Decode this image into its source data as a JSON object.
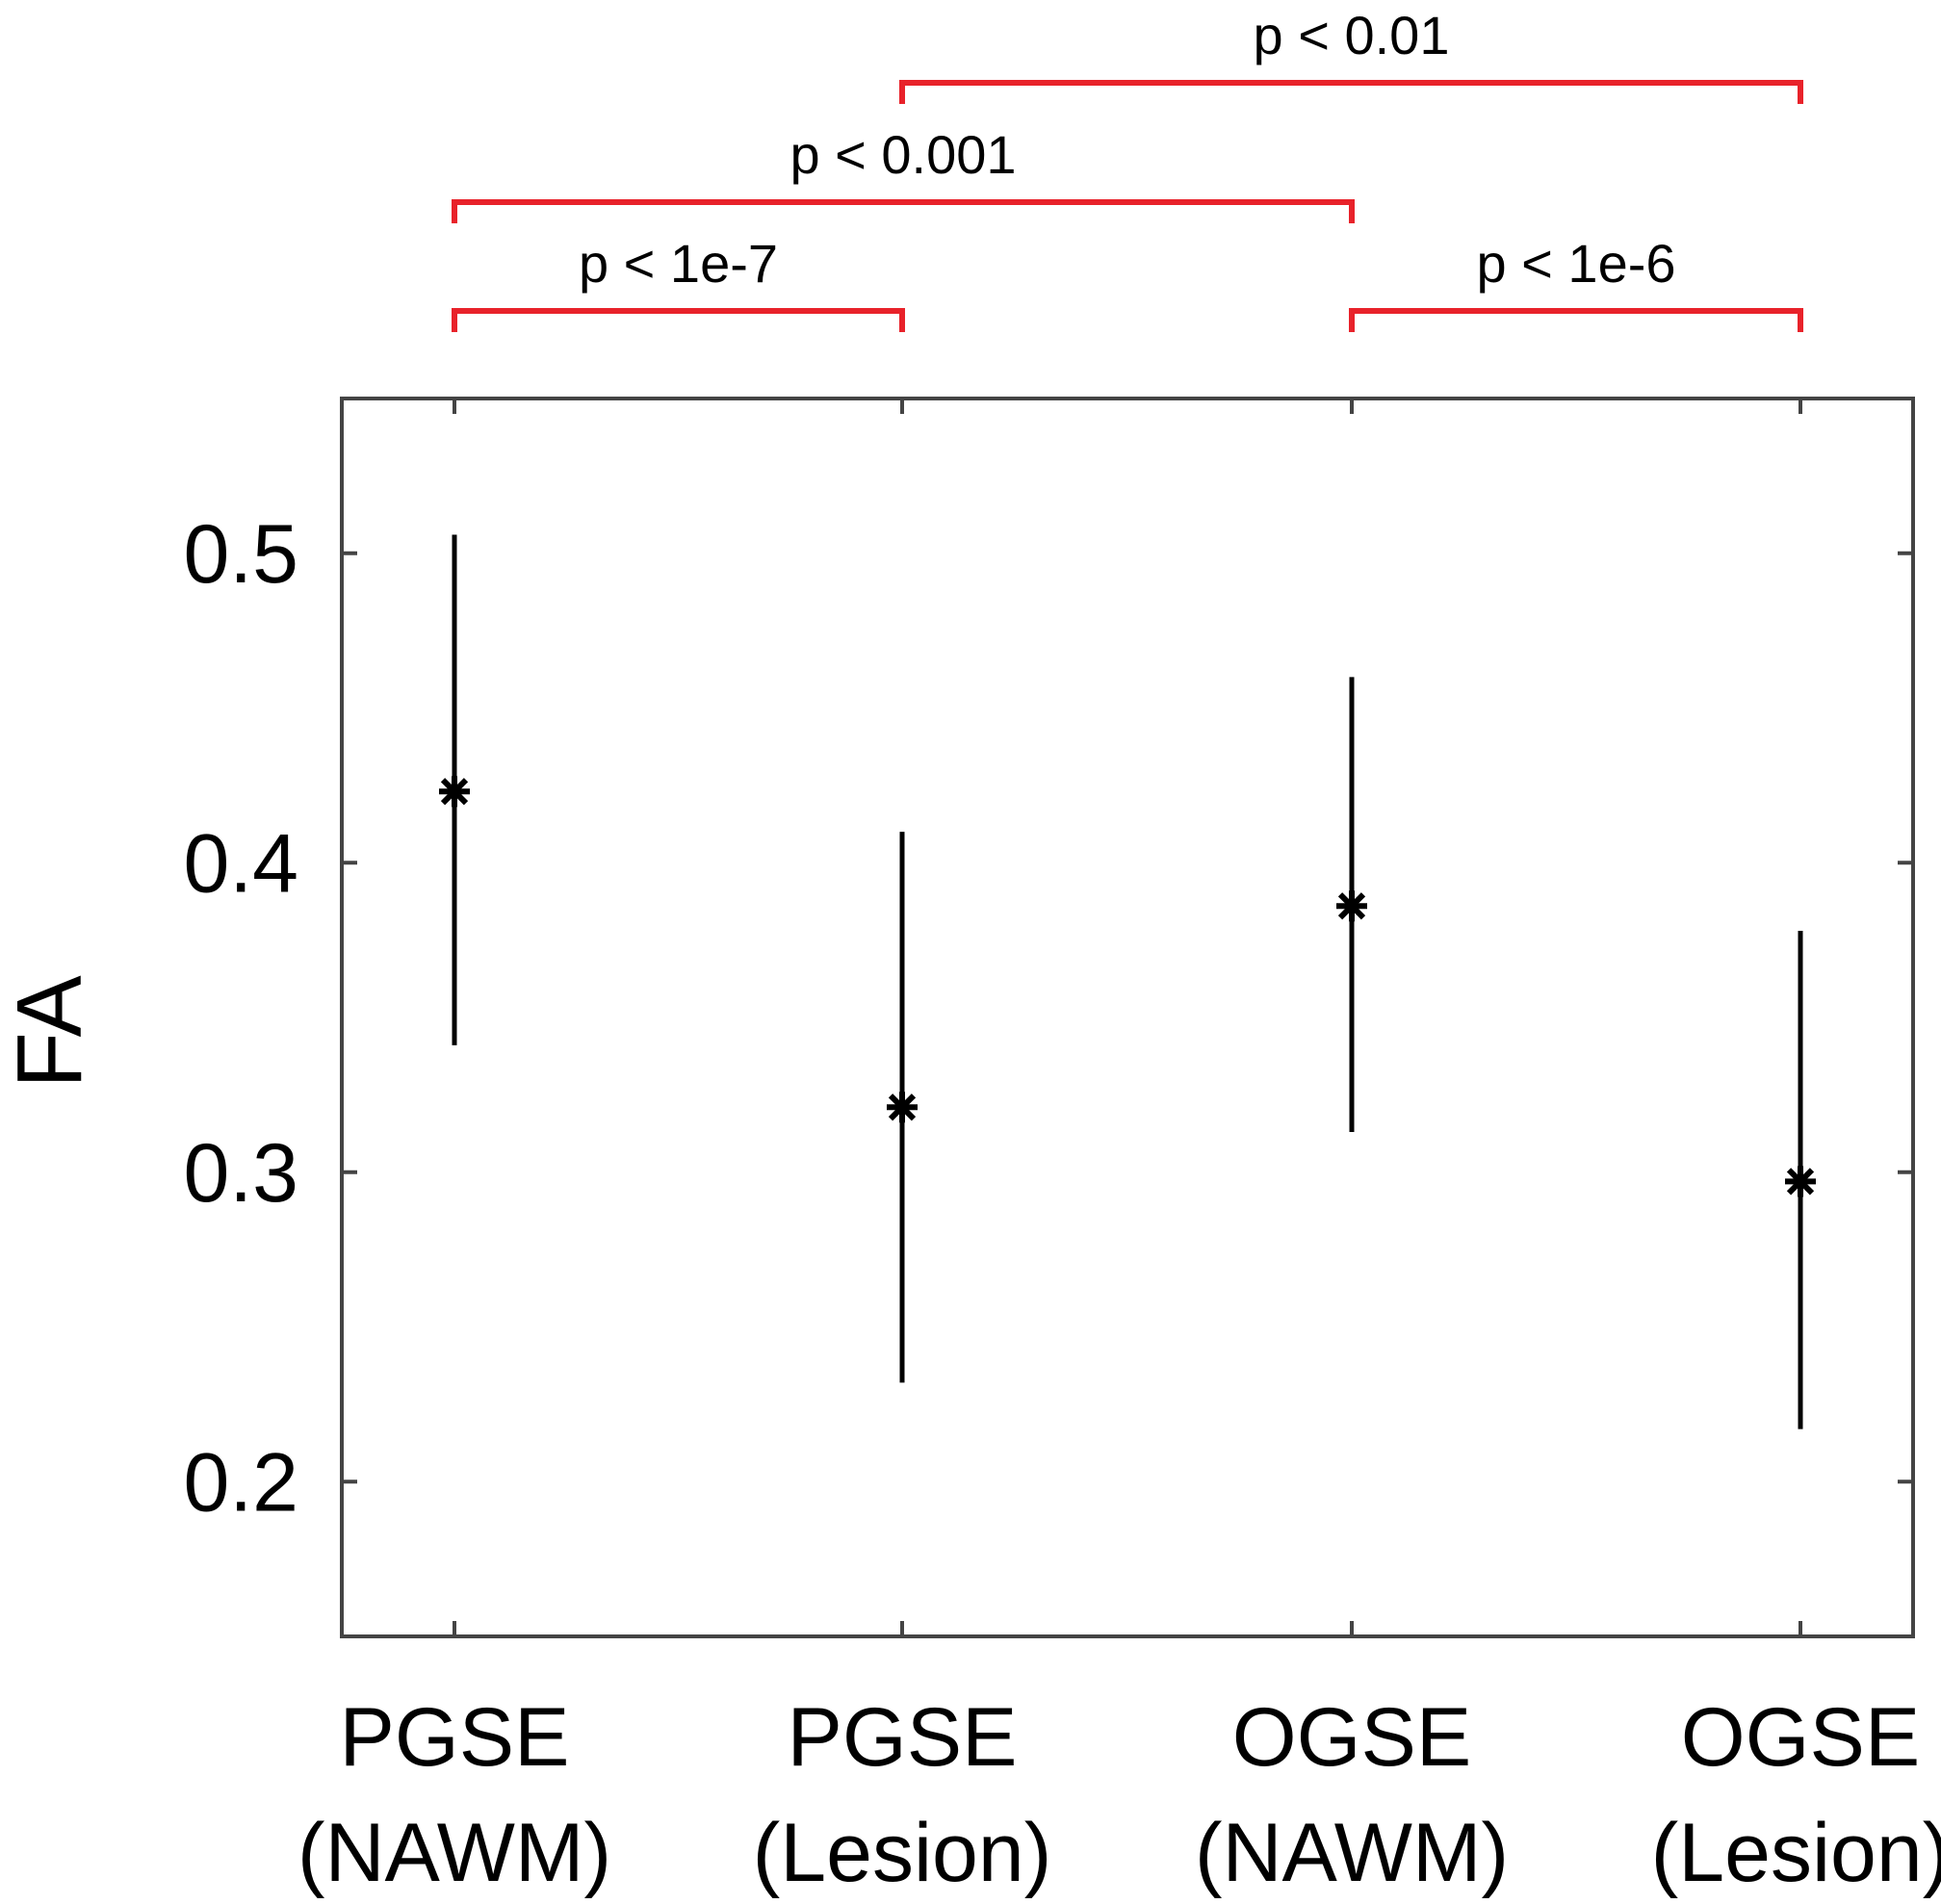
{
  "chart_data": {
    "type": "errorbar",
    "title": "",
    "xlabel": "",
    "ylabel": "FA",
    "ylim": [
      0.15,
      0.55
    ],
    "yticks": [
      0.2,
      0.3,
      0.4,
      0.5
    ],
    "ytick_labels": [
      "0.2",
      "0.3",
      "0.4",
      "0.5"
    ],
    "grid": false,
    "categories": [
      {
        "line1": "PGSE",
        "line2": "(NAWM)"
      },
      {
        "line1": "PGSE",
        "line2": "(Lesion)"
      },
      {
        "line1": "OGSE",
        "line2": "(NAWM)"
      },
      {
        "line1": "OGSE",
        "line2": "(Lesion)"
      }
    ],
    "values": [
      0.423,
      0.321,
      0.386,
      0.297
    ],
    "error_low": [
      0.341,
      0.232,
      0.313,
      0.217
    ],
    "error_high": [
      0.506,
      0.41,
      0.46,
      0.378
    ],
    "marker": "asterisk",
    "marker_color": "#000000",
    "bracket_color": "#e8222a",
    "significance": [
      {
        "from": 0,
        "to": 1,
        "label": "p < 1e-7",
        "level": 1
      },
      {
        "from": 0,
        "to": 2,
        "label": "p < 0.001",
        "level": 2
      },
      {
        "from": 2,
        "to": 3,
        "label": "p < 1e-6",
        "level": 1
      },
      {
        "from": 1,
        "to": 3,
        "label": "p < 0.01",
        "level": 3
      }
    ]
  }
}
